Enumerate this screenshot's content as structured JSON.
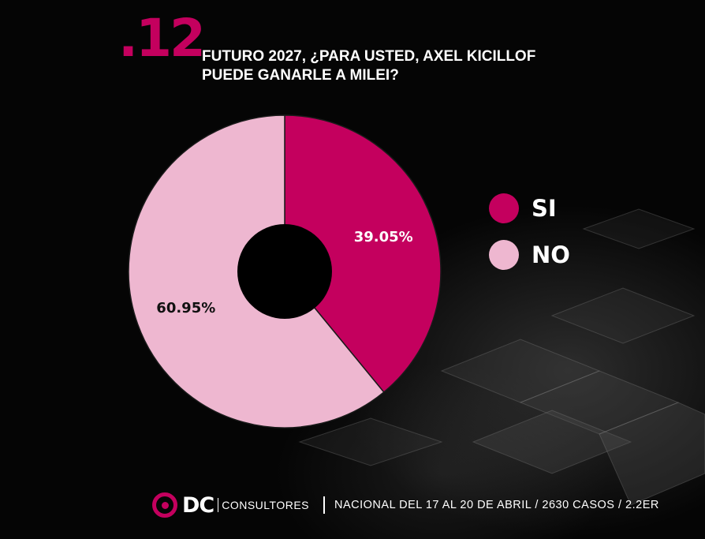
{
  "question": {
    "number": ".12",
    "title": "FUTURO 2027, ¿PARA USTED, AXEL KICILLOF PUEDE GANARLE A MILEI?"
  },
  "colors": {
    "accent": "#c4005e",
    "si": "#c4005e",
    "no": "#eeb7d0",
    "background": "#050505"
  },
  "chart_data": {
    "type": "pie",
    "style": "donut",
    "title": "",
    "labels": [
      "SI",
      "NO"
    ],
    "values": [
      39.05,
      60.95
    ],
    "data_labels": [
      "39.05%",
      "60.95%"
    ],
    "colors": [
      "#c4005e",
      "#eeb7d0"
    ],
    "legend_position": "right"
  },
  "legend": {
    "items": [
      {
        "label": "SI",
        "color": "#c4005e"
      },
      {
        "label": "NO",
        "color": "#eeb7d0"
      }
    ]
  },
  "footer": {
    "logo_text": "DC",
    "logo_subtext": "CONSULTORES",
    "logo_icon": "target-ring-icon",
    "info": "NACIONAL  DEL 17 AL 20 DE ABRIL / 2630 CASOS / 2.2ER"
  }
}
